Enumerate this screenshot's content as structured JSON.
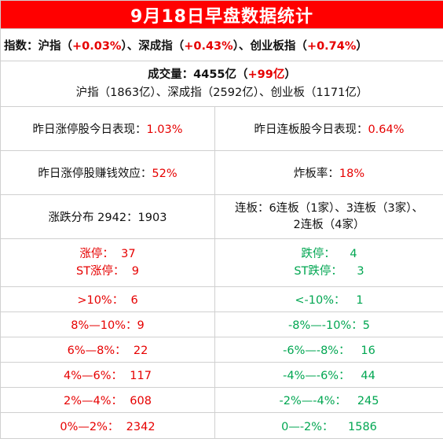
{
  "title": "9月18日早盘数据统计",
  "indices": {
    "label": "指数：",
    "items": [
      {
        "name": "沪指（",
        "value": "+0.03%",
        "suffix": "）、"
      },
      {
        "name": "深成指（",
        "value": "+0.43%",
        "suffix": "）、"
      },
      {
        "name": "创业板指（",
        "value": "+0.74%",
        "suffix": "）"
      }
    ]
  },
  "volume": {
    "label": "成交量：4455亿（",
    "change": "+99亿",
    "close": "）",
    "detail": "沪指（1863亿）、深成指（2592亿）、创业板（1171亿）"
  },
  "stats": {
    "zt_today_label": "昨日涨停股今日表现：",
    "zt_today_value": "1.03%",
    "lb_today_label": "昨日连板股今日表现：",
    "lb_today_value": "0.64%",
    "zt_profit_label": "昨日涨停股赚钱效应：",
    "zt_profit_value": "52%",
    "zhaban_label": "炸板率：",
    "zhaban_value": "18%",
    "distribution": "涨跌分布 2942：1903",
    "lianban_line1": "连板：6连板（1家）、3连板（3家）、",
    "lianban_line2": "2连板（4家）"
  },
  "limit": {
    "up_label": "涨停：",
    "up_value": "37",
    "st_up_label": "ST涨停：",
    "st_up_value": "9",
    "down_label": "跌停：",
    "down_value": "4",
    "st_down_label": "ST跌停：",
    "st_down_value": "3"
  },
  "buckets": [
    {
      "up_label": ">10%：",
      "up_value": "6",
      "down_label": "<-10%：",
      "down_value": "1"
    },
    {
      "up_label": "8%—10%：",
      "up_value": "9",
      "down_label": "-8%—-10%：",
      "down_value": "5"
    },
    {
      "up_label": "6%—8%：",
      "up_value": "22",
      "down_label": "-6%—-8%：",
      "down_value": "16"
    },
    {
      "up_label": "4%—6%：",
      "up_value": "117",
      "down_label": "-4%—-6%：",
      "down_value": "44"
    },
    {
      "up_label": "2%—4%：",
      "up_value": "608",
      "down_label": "-2%—-4%：",
      "down_value": "245"
    },
    {
      "up_label": "0%—2%：",
      "up_value": "2342",
      "down_label": "0—-2%：",
      "down_value": "1586"
    }
  ],
  "colors": {
    "header_bg": "#ff0000",
    "up": "#e60000",
    "down": "#00a651"
  }
}
